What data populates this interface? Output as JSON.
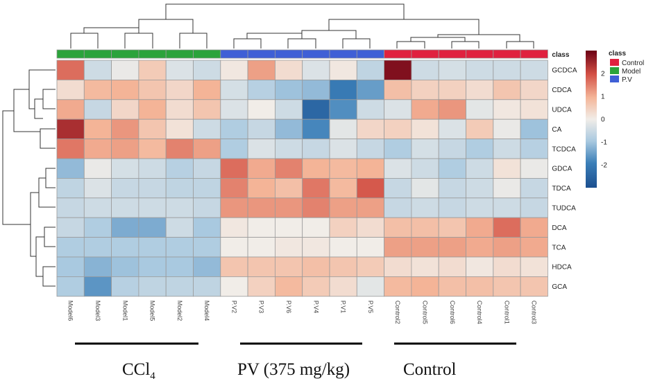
{
  "chart_data": {
    "type": "heatmap",
    "title": "",
    "rows": [
      "GCDCA",
      "CDCA",
      "UDCA",
      "CA",
      "TCDCA",
      "GDCA",
      "TDCA",
      "TUDCA",
      "DCA",
      "TCA",
      "HDCA",
      "GCA"
    ],
    "columns": [
      "Model6",
      "Model3",
      "Model1",
      "Model5",
      "Model2",
      "Model4",
      "P.V2",
      "P.V3",
      "P.V6",
      "P.V4",
      "P.V1",
      "P.V5",
      "Control2",
      "Control5",
      "Control6",
      "Control4",
      "Control1",
      "Control3"
    ],
    "column_class": [
      "Model",
      "Model",
      "Model",
      "Model",
      "Model",
      "Model",
      "P.V",
      "P.V",
      "P.V",
      "P.V",
      "P.V",
      "P.V",
      "Control",
      "Control",
      "Control",
      "Control",
      "Control",
      "Control"
    ],
    "values": [
      [
        1.7,
        -0.5,
        -0.1,
        0.6,
        -0.3,
        -0.5,
        0.1,
        1.2,
        0.3,
        -0.3,
        0.1,
        -0.7,
        2.8,
        -0.5,
        -0.4,
        -0.5,
        -0.5,
        -0.5
      ],
      [
        0.3,
        0.9,
        1.0,
        0.7,
        0.4,
        1.0,
        -0.4,
        -0.8,
        -1.1,
        -1.2,
        -2.1,
        -1.6,
        0.8,
        0.5,
        0.5,
        0.3,
        0.7,
        0.4
      ],
      [
        1.1,
        -0.6,
        0.4,
        1.0,
        0.3,
        0.7,
        -0.3,
        0.0,
        -0.5,
        -2.5,
        -1.8,
        -0.5,
        -0.3,
        1.1,
        1.3,
        -0.2,
        0.1,
        0.2
      ],
      [
        2.4,
        1.0,
        1.3,
        0.7,
        0.2,
        -0.5,
        -0.9,
        -0.6,
        -1.2,
        -1.9,
        -0.2,
        0.4,
        0.5,
        0.2,
        -0.3,
        0.6,
        -0.1,
        -1.1
      ],
      [
        1.6,
        1.1,
        1.2,
        0.9,
        1.5,
        1.2,
        -0.9,
        -0.3,
        -0.5,
        -0.6,
        -0.3,
        -0.6,
        -0.9,
        -0.4,
        -0.6,
        -0.9,
        -0.5,
        -0.8
      ],
      [
        -1.2,
        -0.1,
        -0.4,
        -0.5,
        -0.8,
        -0.6,
        1.7,
        1.1,
        1.5,
        1.0,
        0.9,
        1.0,
        -0.3,
        -0.5,
        -0.9,
        -0.5,
        0.2,
        -0.1
      ],
      [
        -0.7,
        -0.3,
        -0.6,
        -0.6,
        -0.7,
        -0.7,
        1.5,
        1.0,
        0.8,
        1.6,
        0.9,
        1.9,
        -0.6,
        -0.2,
        -0.6,
        -0.5,
        -0.1,
        -0.6
      ],
      [
        -0.6,
        -0.5,
        -0.5,
        -0.5,
        -0.5,
        -0.6,
        1.3,
        1.3,
        1.3,
        1.5,
        1.2,
        1.2,
        -0.6,
        -0.5,
        -0.6,
        -0.5,
        -0.5,
        -0.6
      ],
      [
        -0.6,
        -0.9,
        -1.4,
        -1.4,
        -0.5,
        -1.0,
        0.1,
        0.0,
        0.0,
        0.0,
        0.5,
        0.3,
        0.8,
        0.8,
        0.7,
        1.1,
        1.7,
        1.1
      ],
      [
        -0.9,
        -0.9,
        -0.9,
        -0.9,
        -0.9,
        -0.9,
        0.0,
        0.0,
        0.1,
        0.1,
        0.0,
        0.0,
        1.2,
        1.2,
        1.2,
        1.1,
        1.2,
        1.1
      ],
      [
        -1.0,
        -1.3,
        -1.1,
        -1.0,
        -1.0,
        -1.2,
        0.7,
        0.7,
        0.7,
        0.8,
        0.7,
        0.6,
        0.3,
        0.2,
        0.3,
        0.1,
        0.3,
        0.2
      ],
      [
        -0.9,
        -1.7,
        -0.8,
        -0.7,
        -0.7,
        -0.7,
        0.0,
        0.5,
        0.9,
        0.6,
        0.3,
        -0.2,
        0.9,
        1.0,
        0.8,
        0.8,
        0.7,
        0.7
      ]
    ],
    "colorbar": {
      "ticks": [
        2,
        1,
        0,
        -1,
        -2
      ],
      "min": -3,
      "max": 3
    },
    "legend": {
      "title": "class",
      "items": [
        "Control",
        "Model",
        "P.V"
      ]
    },
    "class_colors": {
      "Control": "#e0213f",
      "Model": "#2ba33b",
      "P.V": "#3f5fd6"
    },
    "class_bar_label": "class",
    "colors": {
      "low": "#1c4f8f",
      "mid": "#f1ede8",
      "high": "#6b0014"
    },
    "group_labels": [
      "CCl4",
      "PV (375 mg/kg)",
      "Control"
    ]
  },
  "group_text": {
    "ccl_main": "CCl",
    "ccl_sub": "4",
    "pv": "PV (375 mg/kg)",
    "control": "Control"
  }
}
